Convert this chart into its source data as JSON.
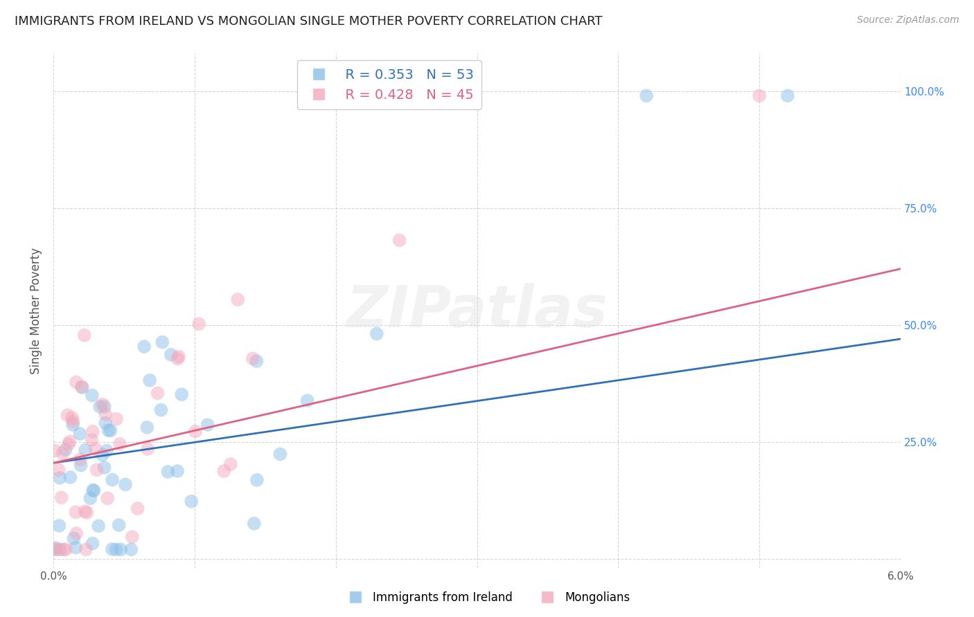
{
  "title": "IMMIGRANTS FROM IRELAND VS MONGOLIAN SINGLE MOTHER POVERTY CORRELATION CHART",
  "source": "Source: ZipAtlas.com",
  "ylabel": "Single Mother Poverty",
  "xlim": [
    0.0,
    0.06
  ],
  "ylim": [
    -0.02,
    1.08
  ],
  "yticks": [
    0.0,
    0.25,
    0.5,
    0.75,
    1.0
  ],
  "xticks": [
    0.0,
    0.01,
    0.02,
    0.03,
    0.04,
    0.05,
    0.06
  ],
  "xtick_labels": [
    "0.0%",
    "",
    "",
    "",
    "",
    "",
    "6.0%"
  ],
  "right_ytick_labels": [
    "",
    "25.0%",
    "50.0%",
    "75.0%",
    "100.0%"
  ],
  "ireland_color": "#8BBFE8",
  "mongolia_color": "#F4A8BC",
  "ireland_line_color": "#3070B8",
  "mongolia_line_color": "#E06080",
  "legend_r_ireland": "R = 0.353",
  "legend_n_ireland": "N = 53",
  "legend_r_mongolia": "R = 0.428",
  "legend_n_mongolia": "N = 45",
  "watermark": "ZIPatlas",
  "background_color": "#ffffff",
  "grid_color": "#cccccc",
  "title_color": "#222222",
  "axis_label_color": "#555555",
  "right_ytick_color": "#3388FF",
  "ireland_line_intercept": 0.2,
  "ireland_line_slope": 4.8,
  "mongolia_line_intercept": 0.2,
  "mongolia_line_slope": 7.0
}
